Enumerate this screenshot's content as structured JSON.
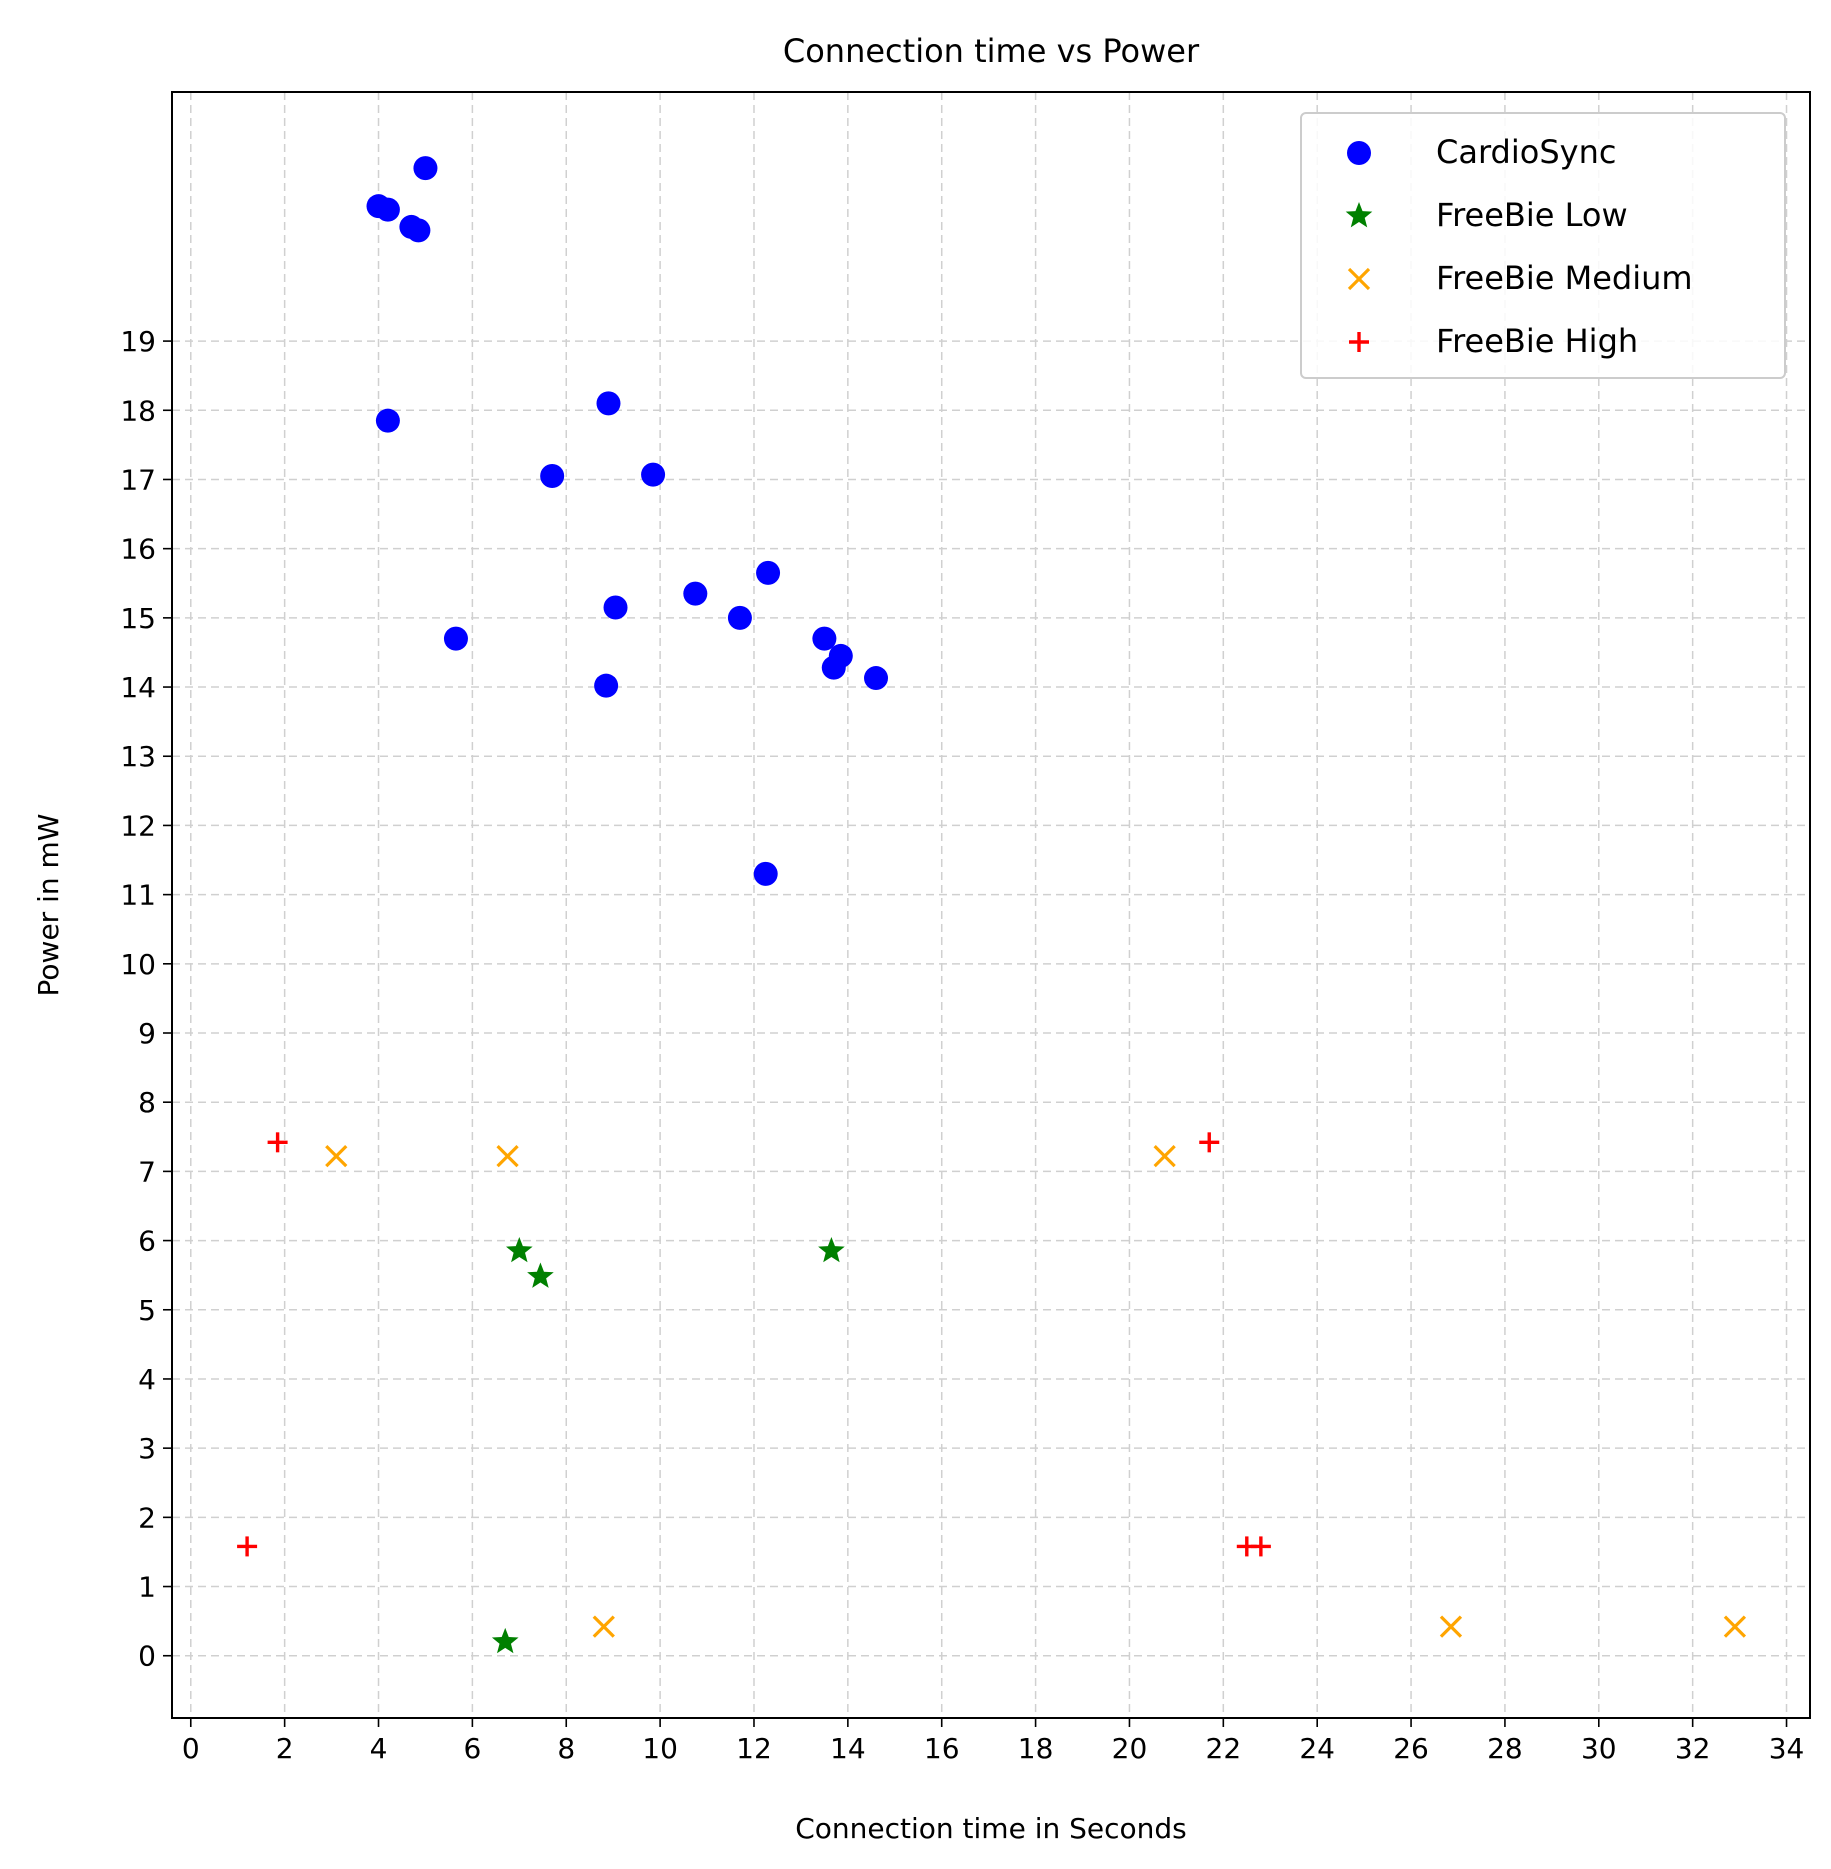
{
  "chart_data": {
    "type": "scatter",
    "title": "Connection time vs Power",
    "xlabel": "Connection time in Seconds",
    "ylabel": "Power in mW",
    "xlim": [
      -0.4,
      34.5
    ],
    "ylim": [
      -0.9,
      22.6
    ],
    "xticks": [
      0,
      2,
      4,
      6,
      8,
      10,
      12,
      14,
      16,
      18,
      20,
      22,
      24,
      26,
      28,
      30,
      32,
      34
    ],
    "yticks": [
      0,
      1,
      2,
      3,
      4,
      5,
      6,
      7,
      8,
      9,
      10,
      11,
      12,
      13,
      14,
      15,
      16,
      17,
      18,
      19
    ],
    "grid": true,
    "legend_position": "top-right",
    "series": [
      {
        "name": "CardioSync",
        "marker": "circle",
        "color": "#0000ff",
        "points": [
          [
            5.0,
            21.5
          ],
          [
            4.0,
            20.95
          ],
          [
            4.2,
            20.9
          ],
          [
            4.7,
            20.65
          ],
          [
            4.85,
            20.6
          ],
          [
            4.2,
            17.85
          ],
          [
            8.9,
            18.1
          ],
          [
            7.7,
            17.05
          ],
          [
            9.85,
            17.07
          ],
          [
            12.3,
            15.65
          ],
          [
            10.75,
            15.35
          ],
          [
            9.05,
            15.15
          ],
          [
            11.7,
            15.0
          ],
          [
            5.65,
            14.7
          ],
          [
            13.5,
            14.7
          ],
          [
            13.85,
            14.45
          ],
          [
            13.7,
            14.28
          ],
          [
            14.6,
            14.13
          ],
          [
            8.85,
            14.02
          ],
          [
            12.25,
            11.3
          ]
        ]
      },
      {
        "name": "FreeBie Low",
        "marker": "star",
        "color": "#008000",
        "points": [
          [
            7.0,
            5.85
          ],
          [
            13.65,
            5.85
          ],
          [
            7.45,
            5.48
          ],
          [
            6.7,
            0.2
          ]
        ]
      },
      {
        "name": "FreeBie Medium",
        "marker": "x",
        "color": "#ffa500",
        "points": [
          [
            3.1,
            7.22
          ],
          [
            6.75,
            7.22
          ],
          [
            20.75,
            7.22
          ],
          [
            8.8,
            0.42
          ],
          [
            26.85,
            0.42
          ],
          [
            32.9,
            0.42
          ]
        ]
      },
      {
        "name": "FreeBie High",
        "marker": "plus",
        "color": "#ff0000",
        "points": [
          [
            1.85,
            7.42
          ],
          [
            21.7,
            7.42
          ],
          [
            1.2,
            1.58
          ],
          [
            22.5,
            1.58
          ],
          [
            22.8,
            1.58
          ]
        ]
      }
    ]
  }
}
